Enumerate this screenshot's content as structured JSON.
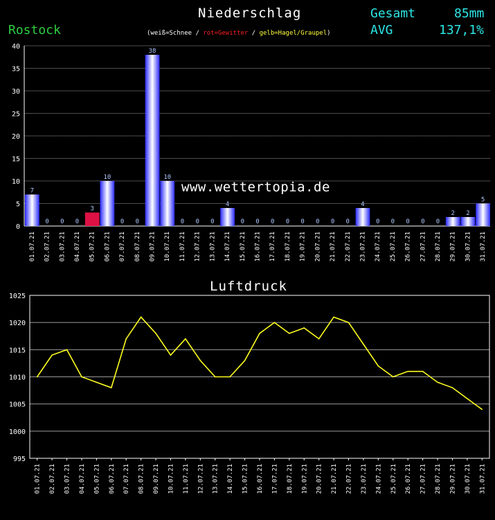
{
  "header": {
    "title": "Niederschlag",
    "station": "Rostock",
    "legend": {
      "snow": "weiß=Schnee",
      "storm": "rot=Gewitter",
      "hail": "gelb=Hagel/Graupel",
      "sep": "/"
    },
    "total_label": "Gesamt",
    "total_value": "85mm",
    "avg_label": "AVG",
    "avg_value": "137,1%"
  },
  "watermark": "www.wettertopia.de",
  "colors": {
    "bar": "#2a2aff",
    "bar_highlight": "#ffffff",
    "storm_bar": "#dd1144",
    "line": "#ffff20",
    "grid": "#9a9a9a",
    "station": "#2ecc40",
    "accent": "#2ee6e6"
  },
  "chart_data": [
    {
      "type": "bar",
      "title": "Niederschlag",
      "categories": [
        "01.07.21",
        "02.07.21",
        "03.07.21",
        "04.07.21",
        "05.07.21",
        "06.07.21",
        "07.07.21",
        "08.07.21",
        "09.07.21",
        "10.07.21",
        "11.07.21",
        "12.07.21",
        "13.07.21",
        "14.07.21",
        "15.07.21",
        "16.07.21",
        "17.07.21",
        "18.07.21",
        "19.07.21",
        "20.07.21",
        "21.07.21",
        "22.07.21",
        "23.07.21",
        "24.07.21",
        "25.07.21",
        "26.07.21",
        "27.07.21",
        "28.07.21",
        "29.07.21",
        "30.07.21",
        "31.07.21"
      ],
      "values": [
        7,
        0,
        0,
        0,
        3,
        10,
        0,
        0,
        38,
        10,
        0,
        0,
        0,
        4,
        0,
        0,
        0,
        0,
        0,
        0,
        0,
        0,
        4,
        0,
        0,
        0,
        0,
        0,
        2,
        2,
        5
      ],
      "data_labels": [
        "7",
        "0",
        "0",
        "0",
        "3",
        "10",
        "0",
        "0",
        "38",
        "10",
        "0",
        "0",
        "0",
        "4",
        "0",
        "0",
        "0",
        "0",
        "0",
        "0",
        "0",
        "0",
        "4",
        "0",
        "0",
        "0",
        "0",
        "0",
        "2",
        "2",
        "5"
      ],
      "storm_days": [
        4
      ],
      "ylim": [
        0,
        40
      ],
      "yticks": [
        0,
        5,
        10,
        15,
        20,
        25,
        30,
        35,
        40
      ],
      "grid": true
    },
    {
      "type": "line",
      "title": "Luftdruck",
      "categories": [
        "01.07.21",
        "02.07.21",
        "03.07.21",
        "04.07.21",
        "05.07.21",
        "06.07.21",
        "07.07.21",
        "08.07.21",
        "09.07.21",
        "10.07.21",
        "11.07.21",
        "12.07.21",
        "13.07.21",
        "14.07.21",
        "15.07.21",
        "16.07.21",
        "17.07.21",
        "18.07.21",
        "19.07.21",
        "20.07.21",
        "21.07.21",
        "22.07.21",
        "23.07.21",
        "24.07.21",
        "25.07.21",
        "26.07.21",
        "27.07.21",
        "28.07.21",
        "29.07.21",
        "30.07.21",
        "31.07.21"
      ],
      "values": [
        1010,
        1014,
        1015,
        1010,
        1009,
        1008,
        1017,
        1021,
        1018,
        1014,
        1017,
        1013,
        1010,
        1010,
        1013,
        1018,
        1020,
        1018,
        1019,
        1017,
        1021,
        1020,
        1016,
        1012,
        1010,
        1011,
        1011,
        1009,
        1008,
        1006,
        1004
      ],
      "ylim": [
        995,
        1025
      ],
      "yticks": [
        995,
        1000,
        1005,
        1010,
        1015,
        1020,
        1025
      ],
      "grid": true
    }
  ]
}
